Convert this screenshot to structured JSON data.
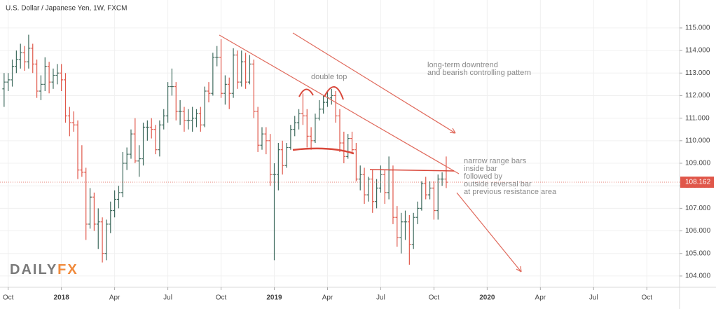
{
  "chart_data": {
    "type": "ohlc",
    "title": "U.S. Dollar / Japanese Yen, 1W, FXCM",
    "logo": [
      "DAILY",
      "FX"
    ],
    "annotations": [
      "double top",
      "long-term downtrend",
      "and bearish controlling pattern",
      "narrow range bars",
      "inside bar",
      "followed by",
      "outside reversal bar",
      "at previous resistance area"
    ],
    "up_color": "#3f6b5e",
    "down_color": "#e0574a",
    "grid": true,
    "last_price": 108.162,
    "xlim": [
      -2,
      164
    ],
    "ylim": [
      103.5,
      116.24
    ],
    "xticks": [
      {
        "value": 0,
        "label": "Oct"
      },
      {
        "value": 13,
        "label": "2018"
      },
      {
        "value": 26,
        "label": "Apr"
      },
      {
        "value": 39,
        "label": "Jul"
      },
      {
        "value": 52,
        "label": "Oct"
      },
      {
        "value": 65,
        "label": "2019"
      },
      {
        "value": 78,
        "label": "Apr"
      },
      {
        "value": 91,
        "label": "Jul"
      },
      {
        "value": 104,
        "label": "Oct"
      },
      {
        "value": 117,
        "label": "2020"
      },
      {
        "value": 130,
        "label": "Apr"
      },
      {
        "value": 143,
        "label": "Jul"
      },
      {
        "value": 156,
        "label": "Oct"
      }
    ],
    "yticks": [
      {
        "value": 104,
        "label": "104.000"
      },
      {
        "value": 105,
        "label": "105.000"
      },
      {
        "value": 106,
        "label": "106.000"
      },
      {
        "value": 107,
        "label": "107.000"
      },
      {
        "value": 108,
        "label": "108.000"
      },
      {
        "value": 109,
        "label": "109.000"
      },
      {
        "value": 110,
        "label": "110.000"
      },
      {
        "value": 111,
        "label": "111.000"
      },
      {
        "value": 112,
        "label": "112.000"
      },
      {
        "value": 113,
        "label": "113.000"
      },
      {
        "value": 114,
        "label": "114.000"
      },
      {
        "value": 115,
        "label": "115.000"
      }
    ],
    "x": [
      -1,
      0,
      1,
      2,
      3,
      4,
      5,
      6,
      7,
      8,
      9,
      10,
      11,
      12,
      13,
      14,
      15,
      16,
      17,
      18,
      19,
      20,
      21,
      22,
      23,
      24,
      25,
      26,
      27,
      28,
      29,
      30,
      31,
      32,
      33,
      34,
      35,
      36,
      37,
      38,
      39,
      40,
      41,
      42,
      43,
      44,
      45,
      46,
      47,
      48,
      49,
      50,
      51,
      52,
      53,
      54,
      55,
      56,
      57,
      58,
      59,
      60,
      61,
      62,
      63,
      64,
      65,
      66,
      67,
      68,
      69,
      70,
      71,
      72,
      73,
      74,
      75,
      76,
      77,
      78,
      79,
      80,
      81,
      82,
      83,
      84,
      85,
      86,
      87,
      88,
      89,
      90,
      91,
      92,
      93,
      94,
      95,
      96,
      97,
      98,
      99,
      100,
      101,
      102,
      103,
      104,
      105,
      106,
      107
    ],
    "open": [
      112.3,
      112.6,
      112.7,
      113.3,
      113.6,
      113.9,
      113.5,
      114.1,
      113.4,
      112.2,
      112.5,
      113.3,
      112.6,
      112.9,
      113.0,
      112.7,
      111.1,
      110.8,
      110.7,
      108.7,
      108.6,
      106.3,
      107.5,
      106.3,
      106.4,
      105.0,
      106.3,
      106.9,
      107.4,
      107.7,
      109.0,
      109.4,
      110.3,
      109.1,
      109.2,
      110.6,
      110.6,
      110.5,
      109.6,
      110.7,
      111.1,
      112.4,
      112.4,
      111.3,
      111.3,
      110.9,
      110.9,
      111.0,
      111.2,
      110.7,
      112.2,
      112.1,
      113.7,
      113.7,
      112.1,
      112.5,
      112.1,
      113.8,
      112.6,
      113.5,
      112.6,
      113.4,
      111.3,
      109.8,
      110.3,
      110.0,
      108.5,
      108.5,
      109.6,
      108.9,
      109.7,
      110.5,
      110.8,
      111.2,
      111.1,
      110.2,
      110.0,
      111.0,
      111.4,
      111.7,
      111.9,
      112.0,
      111.1,
      109.9,
      109.3,
      110.1,
      109.6,
      108.3,
      108.5,
      107.6,
      108.3,
      107.3,
      107.9,
      108.5,
      107.7,
      108.7,
      106.6,
      105.7,
      106.4,
      106.4,
      105.4,
      106.6,
      107.0,
      108.1,
      107.6,
      107.9,
      106.9,
      108.3,
      108.3
    ],
    "high": [
      113.0,
      113.0,
      113.6,
      114.0,
      114.3,
      114.2,
      114.7,
      114.3,
      113.6,
      112.9,
      113.7,
      113.5,
      113.2,
      113.4,
      113.4,
      113.0,
      111.5,
      111.3,
      110.9,
      109.8,
      108.8,
      107.9,
      107.7,
      107.0,
      106.6,
      106.5,
      107.3,
      107.8,
      108.0,
      109.5,
      109.7,
      110.5,
      111.0,
      109.8,
      110.8,
      110.9,
      111.0,
      110.7,
      110.9,
      111.4,
      112.6,
      113.2,
      112.6,
      111.8,
      111.5,
      111.4,
      111.5,
      111.4,
      111.5,
      112.4,
      112.6,
      113.9,
      114.2,
      114.5,
      112.9,
      112.8,
      114.1,
      114.0,
      114.0,
      113.9,
      113.8,
      113.6,
      111.5,
      110.6,
      110.6,
      110.3,
      109.0,
      109.9,
      110.0,
      109.9,
      110.7,
      111.1,
      111.4,
      112.1,
      111.4,
      110.6,
      111.2,
      111.8,
      112.0,
      112.2,
      112.3,
      112.2,
      111.4,
      110.4,
      110.3,
      110.4,
      109.9,
      108.9,
      108.8,
      108.4,
      108.7,
      108.3,
      108.9,
      108.7,
      109.3,
      108.9,
      107.1,
      106.8,
      106.9,
      106.7,
      106.8,
      107.3,
      108.2,
      108.4,
      108.2,
      108.2,
      108.5,
      108.6,
      109.3
    ],
    "low": [
      111.5,
      112.2,
      112.4,
      113.0,
      113.2,
      113.1,
      113.2,
      113.0,
      111.9,
      111.8,
      112.2,
      112.1,
      112.3,
      112.5,
      112.2,
      110.8,
      110.2,
      110.4,
      108.3,
      108.4,
      105.6,
      106.1,
      106.0,
      105.2,
      104.6,
      104.7,
      105.9,
      106.6,
      107.0,
      107.5,
      108.7,
      109.2,
      109.0,
      108.4,
      108.9,
      110.0,
      110.1,
      109.4,
      109.3,
      110.5,
      110.8,
      112.0,
      110.9,
      110.7,
      110.4,
      110.5,
      110.4,
      110.6,
      110.4,
      110.6,
      111.7,
      112.0,
      113.3,
      111.9,
      111.6,
      111.4,
      111.9,
      112.3,
      112.4,
      112.3,
      112.5,
      111.0,
      109.5,
      109.6,
      109.4,
      108.0,
      104.7,
      107.8,
      108.5,
      108.8,
      109.6,
      110.2,
      110.5,
      110.7,
      109.7,
      109.6,
      109.9,
      110.9,
      111.2,
      111.5,
      111.6,
      110.8,
      109.5,
      109.0,
      109.2,
      109.4,
      108.2,
      107.8,
      107.2,
      107.3,
      106.8,
      107.0,
      107.7,
      107.2,
      107.4,
      106.3,
      105.3,
      105.0,
      105.6,
      104.5,
      105.2,
      106.3,
      106.9,
      107.4,
      107.4,
      106.5,
      106.5,
      108.0,
      107.9
    ],
    "close": [
      112.6,
      112.7,
      113.3,
      113.6,
      113.9,
      113.5,
      114.1,
      113.4,
      112.2,
      112.5,
      113.3,
      112.6,
      112.9,
      113.0,
      112.7,
      111.1,
      110.8,
      110.7,
      108.7,
      108.6,
      106.3,
      107.5,
      106.3,
      106.4,
      105.0,
      106.3,
      106.9,
      107.4,
      107.7,
      109.0,
      109.4,
      110.3,
      109.1,
      109.2,
      110.6,
      110.6,
      110.5,
      109.6,
      110.7,
      111.1,
      112.4,
      112.4,
      111.3,
      111.3,
      110.9,
      110.9,
      111.0,
      111.2,
      110.7,
      112.2,
      112.1,
      113.7,
      113.7,
      112.1,
      112.5,
      112.1,
      113.8,
      112.6,
      113.5,
      112.6,
      113.4,
      111.3,
      109.8,
      110.3,
      110.0,
      108.5,
      108.5,
      109.6,
      108.9,
      109.7,
      110.5,
      110.8,
      111.2,
      111.1,
      110.2,
      110.0,
      111.0,
      111.4,
      111.7,
      111.9,
      112.0,
      111.1,
      109.9,
      109.3,
      110.1,
      109.6,
      108.3,
      108.5,
      107.6,
      108.3,
      107.3,
      107.9,
      108.5,
      107.7,
      108.7,
      106.6,
      105.7,
      106.4,
      106.4,
      105.4,
      106.6,
      107.0,
      108.1,
      107.6,
      107.9,
      106.9,
      108.3,
      108.3,
      108.16
    ]
  }
}
